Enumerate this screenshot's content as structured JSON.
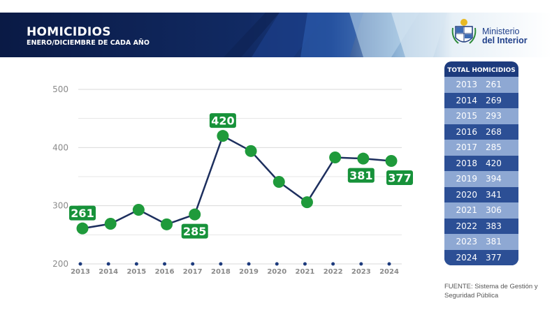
{
  "header": {
    "title": "HOMICIDIOS",
    "subtitle": "ENERO/DICIEMBRE DE CADA AÑO"
  },
  "logo": {
    "line1": "Ministerio",
    "line2": "del Interior"
  },
  "colors": {
    "banner_dark": "#0b1c4d",
    "line": "#1d2f5e",
    "marker": "#1f9a3b",
    "label_bg": "#17923a",
    "table_dark": "#2c4f95",
    "table_light": "#8ea8d3"
  },
  "chart_data": {
    "type": "line",
    "categories": [
      "2013",
      "2014",
      "2015",
      "2016",
      "2017",
      "2018",
      "2019",
      "2020",
      "2021",
      "2022",
      "2023",
      "2024"
    ],
    "values": [
      261,
      269,
      293,
      268,
      285,
      420,
      394,
      341,
      306,
      383,
      381,
      377
    ],
    "ylim": [
      200,
      500
    ],
    "yticks": [
      "500",
      "400",
      "300",
      "200"
    ],
    "grid": true,
    "data_labels": [
      {
        "index": 0,
        "text": "261"
      },
      {
        "index": 4,
        "text": "285"
      },
      {
        "index": 5,
        "text": "420"
      },
      {
        "index": 10,
        "text": "381"
      },
      {
        "index": 11,
        "text": "377"
      }
    ]
  },
  "table": {
    "header": "TOTAL  HOMICIDIOS",
    "rows": [
      {
        "year": "2013",
        "value": "261"
      },
      {
        "year": "2014",
        "value": "269"
      },
      {
        "year": "2015",
        "value": "293"
      },
      {
        "year": "2016",
        "value": "268"
      },
      {
        "year": "2017",
        "value": "285"
      },
      {
        "year": "2018",
        "value": "420"
      },
      {
        "year": "2019",
        "value": "394"
      },
      {
        "year": "2020",
        "value": "341"
      },
      {
        "year": "2021",
        "value": "306"
      },
      {
        "year": "2022",
        "value": "383"
      },
      {
        "year": "2023",
        "value": "381"
      },
      {
        "year": "2024",
        "value": "377"
      }
    ]
  },
  "source": "FUENTE: Sistema de Gestión y Seguridad Pública"
}
